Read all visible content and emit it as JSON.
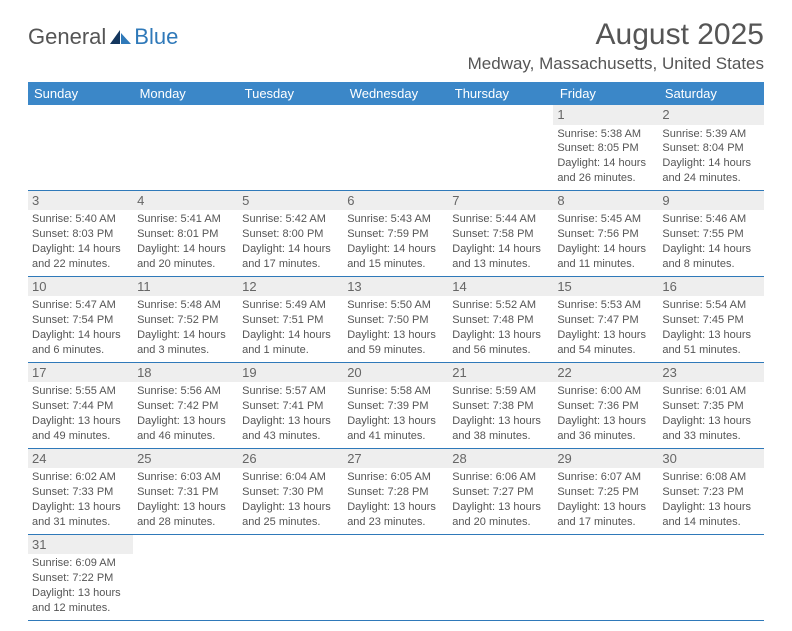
{
  "logo": {
    "part1": "General",
    "part2": "Blue"
  },
  "title": "August 2025",
  "location": "Medway, Massachusetts, United States",
  "colors": {
    "header_bg": "#3b87c8",
    "header_text": "#ffffff",
    "border": "#2f79b9",
    "daynum_bg": "#eeeeee",
    "text": "#555555"
  },
  "weekdays": [
    "Sunday",
    "Monday",
    "Tuesday",
    "Wednesday",
    "Thursday",
    "Friday",
    "Saturday"
  ],
  "weeks": [
    [
      null,
      null,
      null,
      null,
      null,
      {
        "n": "1",
        "sr": "Sunrise: 5:38 AM",
        "ss": "Sunset: 8:05 PM",
        "dl1": "Daylight: 14 hours",
        "dl2": "and 26 minutes."
      },
      {
        "n": "2",
        "sr": "Sunrise: 5:39 AM",
        "ss": "Sunset: 8:04 PM",
        "dl1": "Daylight: 14 hours",
        "dl2": "and 24 minutes."
      }
    ],
    [
      {
        "n": "3",
        "sr": "Sunrise: 5:40 AM",
        "ss": "Sunset: 8:03 PM",
        "dl1": "Daylight: 14 hours",
        "dl2": "and 22 minutes."
      },
      {
        "n": "4",
        "sr": "Sunrise: 5:41 AM",
        "ss": "Sunset: 8:01 PM",
        "dl1": "Daylight: 14 hours",
        "dl2": "and 20 minutes."
      },
      {
        "n": "5",
        "sr": "Sunrise: 5:42 AM",
        "ss": "Sunset: 8:00 PM",
        "dl1": "Daylight: 14 hours",
        "dl2": "and 17 minutes."
      },
      {
        "n": "6",
        "sr": "Sunrise: 5:43 AM",
        "ss": "Sunset: 7:59 PM",
        "dl1": "Daylight: 14 hours",
        "dl2": "and 15 minutes."
      },
      {
        "n": "7",
        "sr": "Sunrise: 5:44 AM",
        "ss": "Sunset: 7:58 PM",
        "dl1": "Daylight: 14 hours",
        "dl2": "and 13 minutes."
      },
      {
        "n": "8",
        "sr": "Sunrise: 5:45 AM",
        "ss": "Sunset: 7:56 PM",
        "dl1": "Daylight: 14 hours",
        "dl2": "and 11 minutes."
      },
      {
        "n": "9",
        "sr": "Sunrise: 5:46 AM",
        "ss": "Sunset: 7:55 PM",
        "dl1": "Daylight: 14 hours",
        "dl2": "and 8 minutes."
      }
    ],
    [
      {
        "n": "10",
        "sr": "Sunrise: 5:47 AM",
        "ss": "Sunset: 7:54 PM",
        "dl1": "Daylight: 14 hours",
        "dl2": "and 6 minutes."
      },
      {
        "n": "11",
        "sr": "Sunrise: 5:48 AM",
        "ss": "Sunset: 7:52 PM",
        "dl1": "Daylight: 14 hours",
        "dl2": "and 3 minutes."
      },
      {
        "n": "12",
        "sr": "Sunrise: 5:49 AM",
        "ss": "Sunset: 7:51 PM",
        "dl1": "Daylight: 14 hours",
        "dl2": "and 1 minute."
      },
      {
        "n": "13",
        "sr": "Sunrise: 5:50 AM",
        "ss": "Sunset: 7:50 PM",
        "dl1": "Daylight: 13 hours",
        "dl2": "and 59 minutes."
      },
      {
        "n": "14",
        "sr": "Sunrise: 5:52 AM",
        "ss": "Sunset: 7:48 PM",
        "dl1": "Daylight: 13 hours",
        "dl2": "and 56 minutes."
      },
      {
        "n": "15",
        "sr": "Sunrise: 5:53 AM",
        "ss": "Sunset: 7:47 PM",
        "dl1": "Daylight: 13 hours",
        "dl2": "and 54 minutes."
      },
      {
        "n": "16",
        "sr": "Sunrise: 5:54 AM",
        "ss": "Sunset: 7:45 PM",
        "dl1": "Daylight: 13 hours",
        "dl2": "and 51 minutes."
      }
    ],
    [
      {
        "n": "17",
        "sr": "Sunrise: 5:55 AM",
        "ss": "Sunset: 7:44 PM",
        "dl1": "Daylight: 13 hours",
        "dl2": "and 49 minutes."
      },
      {
        "n": "18",
        "sr": "Sunrise: 5:56 AM",
        "ss": "Sunset: 7:42 PM",
        "dl1": "Daylight: 13 hours",
        "dl2": "and 46 minutes."
      },
      {
        "n": "19",
        "sr": "Sunrise: 5:57 AM",
        "ss": "Sunset: 7:41 PM",
        "dl1": "Daylight: 13 hours",
        "dl2": "and 43 minutes."
      },
      {
        "n": "20",
        "sr": "Sunrise: 5:58 AM",
        "ss": "Sunset: 7:39 PM",
        "dl1": "Daylight: 13 hours",
        "dl2": "and 41 minutes."
      },
      {
        "n": "21",
        "sr": "Sunrise: 5:59 AM",
        "ss": "Sunset: 7:38 PM",
        "dl1": "Daylight: 13 hours",
        "dl2": "and 38 minutes."
      },
      {
        "n": "22",
        "sr": "Sunrise: 6:00 AM",
        "ss": "Sunset: 7:36 PM",
        "dl1": "Daylight: 13 hours",
        "dl2": "and 36 minutes."
      },
      {
        "n": "23",
        "sr": "Sunrise: 6:01 AM",
        "ss": "Sunset: 7:35 PM",
        "dl1": "Daylight: 13 hours",
        "dl2": "and 33 minutes."
      }
    ],
    [
      {
        "n": "24",
        "sr": "Sunrise: 6:02 AM",
        "ss": "Sunset: 7:33 PM",
        "dl1": "Daylight: 13 hours",
        "dl2": "and 31 minutes."
      },
      {
        "n": "25",
        "sr": "Sunrise: 6:03 AM",
        "ss": "Sunset: 7:31 PM",
        "dl1": "Daylight: 13 hours",
        "dl2": "and 28 minutes."
      },
      {
        "n": "26",
        "sr": "Sunrise: 6:04 AM",
        "ss": "Sunset: 7:30 PM",
        "dl1": "Daylight: 13 hours",
        "dl2": "and 25 minutes."
      },
      {
        "n": "27",
        "sr": "Sunrise: 6:05 AM",
        "ss": "Sunset: 7:28 PM",
        "dl1": "Daylight: 13 hours",
        "dl2": "and 23 minutes."
      },
      {
        "n": "28",
        "sr": "Sunrise: 6:06 AM",
        "ss": "Sunset: 7:27 PM",
        "dl1": "Daylight: 13 hours",
        "dl2": "and 20 minutes."
      },
      {
        "n": "29",
        "sr": "Sunrise: 6:07 AM",
        "ss": "Sunset: 7:25 PM",
        "dl1": "Daylight: 13 hours",
        "dl2": "and 17 minutes."
      },
      {
        "n": "30",
        "sr": "Sunrise: 6:08 AM",
        "ss": "Sunset: 7:23 PM",
        "dl1": "Daylight: 13 hours",
        "dl2": "and 14 minutes."
      }
    ],
    [
      {
        "n": "31",
        "sr": "Sunrise: 6:09 AM",
        "ss": "Sunset: 7:22 PM",
        "dl1": "Daylight: 13 hours",
        "dl2": "and 12 minutes."
      },
      null,
      null,
      null,
      null,
      null,
      null
    ]
  ]
}
